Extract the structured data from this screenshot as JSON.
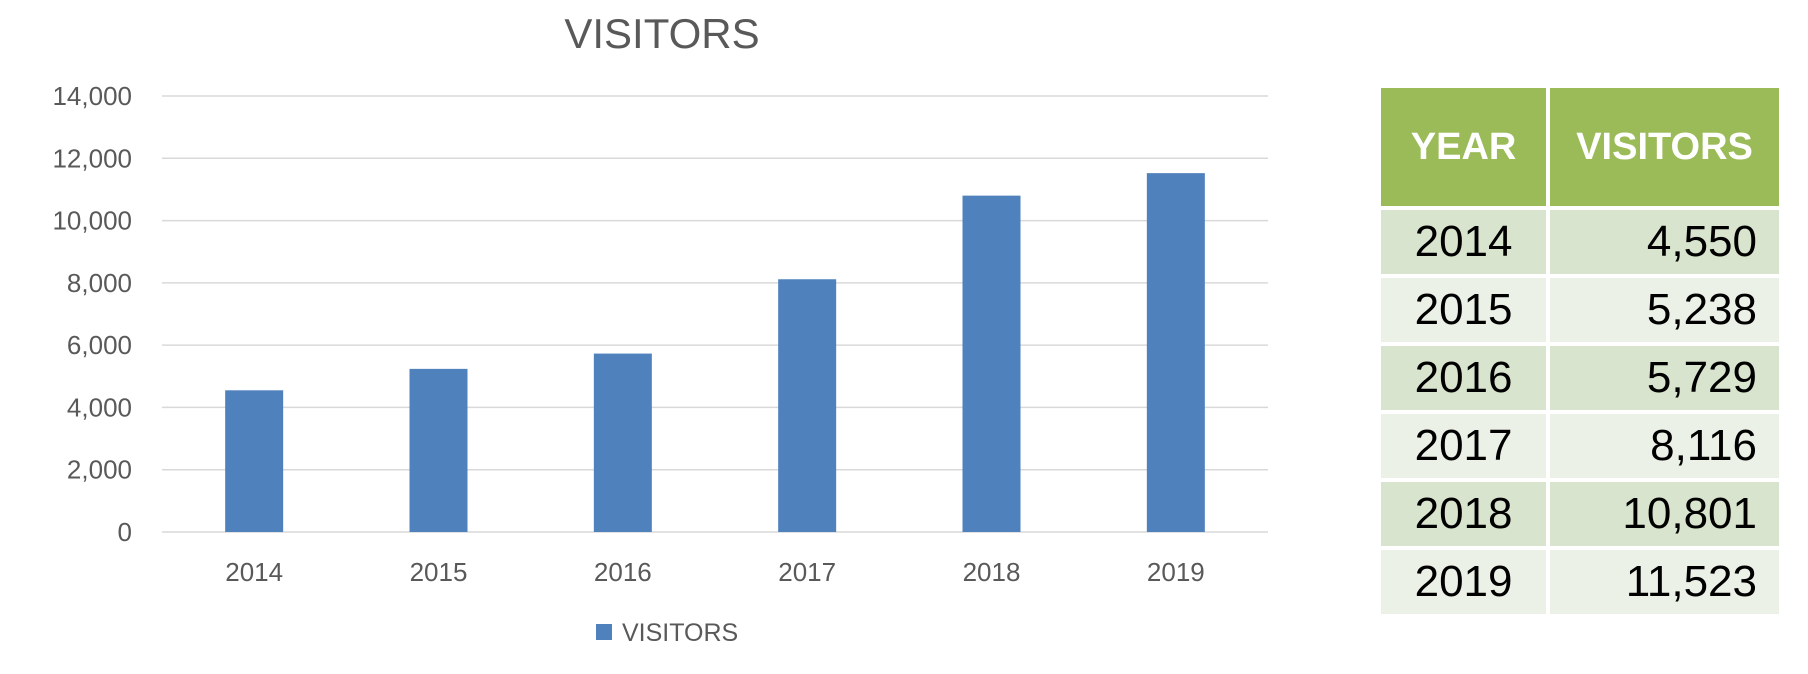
{
  "chart_data": {
    "type": "bar",
    "title": "VISITORS",
    "categories": [
      "2014",
      "2015",
      "2016",
      "2017",
      "2018",
      "2019"
    ],
    "series": [
      {
        "name": "VISITORS",
        "values": [
          4550,
          5238,
          5729,
          8116,
          10801,
          11523
        ],
        "color": "#4f81bd"
      }
    ],
    "xlabel": "",
    "ylabel": "",
    "ylim": [
      0,
      14000
    ],
    "yticks": [
      0,
      2000,
      4000,
      6000,
      8000,
      10000,
      12000,
      14000
    ],
    "ytick_labels": [
      "0",
      "2,000",
      "4,000",
      "6,000",
      "8,000",
      "10,000",
      "12,000",
      "14,000"
    ],
    "grid": true,
    "legend_position": "bottom"
  },
  "table": {
    "header_color": "#9bbb59",
    "columns": [
      "YEAR",
      "VISITORS"
    ],
    "rows": [
      {
        "year": "2014",
        "visitors": "4,550"
      },
      {
        "year": "2015",
        "visitors": "5,238"
      },
      {
        "year": "2016",
        "visitors": "5,729"
      },
      {
        "year": "2017",
        "visitors": "8,116"
      },
      {
        "year": "2018",
        "visitors": "10,801"
      },
      {
        "year": "2019",
        "visitors": "11,523"
      }
    ]
  }
}
